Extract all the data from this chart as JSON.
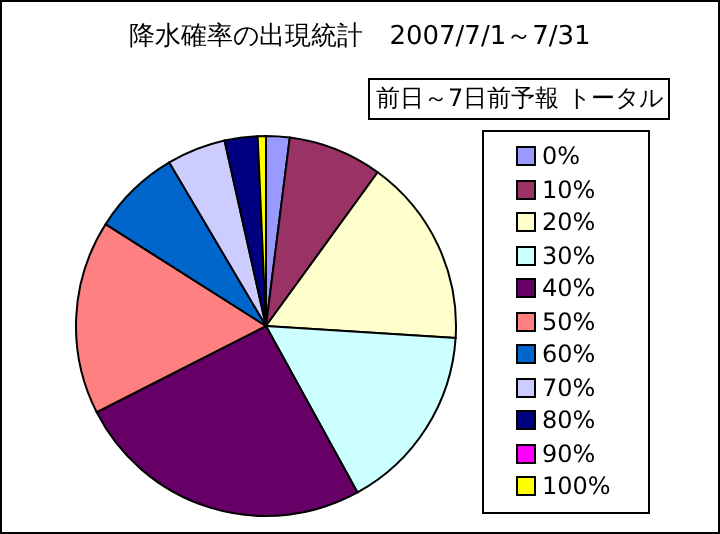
{
  "chart_data": {
    "type": "pie",
    "title": "降水確率の出現統計　2007/7/1～7/31",
    "subtitle": "前日～7日前予報 トータル",
    "categories": [
      "0%",
      "10%",
      "20%",
      "30%",
      "40%",
      "50%",
      "60%",
      "70%",
      "80%",
      "90%",
      "100%"
    ],
    "values": [
      2,
      8,
      16,
      16,
      25.5,
      16.5,
      7.5,
      5,
      2.8,
      0,
      0.7
    ],
    "colors": [
      "#9999ff",
      "#993366",
      "#ffffcc",
      "#ccffff",
      "#660066",
      "#ff8080",
      "#0066cc",
      "#ccccff",
      "#000080",
      "#ff00ff",
      "#ffff00"
    ],
    "legend": "right"
  }
}
